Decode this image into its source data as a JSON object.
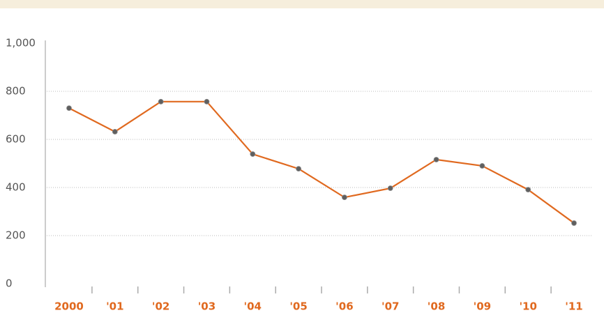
{
  "chart_data": {
    "type": "line",
    "categories": [
      "2000",
      "'01",
      "'02",
      "'03",
      "'04",
      "'05",
      "'06",
      "'07",
      "'08",
      "'09",
      "'10",
      "'11"
    ],
    "values": [
      730,
      632,
      757,
      757,
      539,
      478,
      359,
      397,
      516,
      490,
      391,
      252
    ],
    "color": "#e0691f",
    "marker_color": "#5f5f5f",
    "ylim": [
      0,
      1000
    ],
    "yticks": [
      0,
      200,
      400,
      600,
      800,
      {
        "value": 1000,
        "label": "1,000"
      }
    ],
    "grid": true
  }
}
